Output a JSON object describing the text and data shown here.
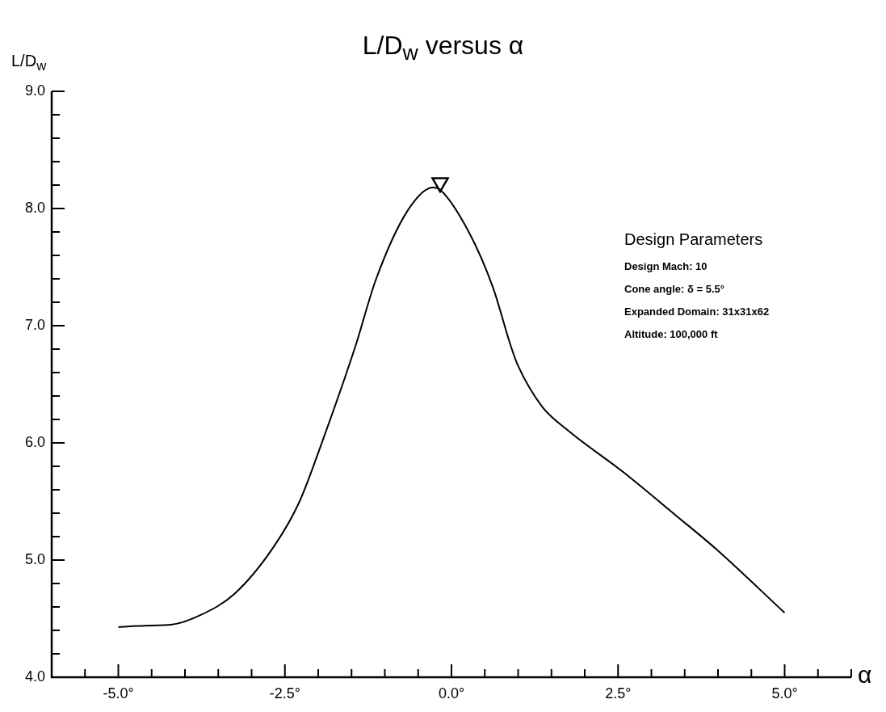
{
  "chart_data": {
    "type": "line",
    "title": "L/D$_{w}$ versus α",
    "xlabel": "α",
    "ylabel": "L/D$_{w}$",
    "xlim": [
      -6,
      6
    ],
    "xticks": [
      {
        "value": -6,
        "label": null
      },
      {
        "value": -5.5,
        "label": null
      },
      {
        "value": -5,
        "label": "-5.0°"
      },
      {
        "value": -4.5,
        "label": null
      },
      {
        "value": -4,
        "label": null
      },
      {
        "value": -3.5,
        "label": null
      },
      {
        "value": -3,
        "label": null
      },
      {
        "value": -2.5,
        "label": "-2.5°"
      },
      {
        "value": -2,
        "label": null
      },
      {
        "value": -1.5,
        "label": null
      },
      {
        "value": -1,
        "label": null
      },
      {
        "value": -0.5,
        "label": null
      },
      {
        "value": 0,
        "label": "0.0°"
      },
      {
        "value": 0.5,
        "label": null
      },
      {
        "value": 1,
        "label": null
      },
      {
        "value": 1.5,
        "label": null
      },
      {
        "value": 2,
        "label": null
      },
      {
        "value": 2.5,
        "label": "2.5°"
      },
      {
        "value": 3,
        "label": null
      },
      {
        "value": 3.5,
        "label": null
      },
      {
        "value": 4,
        "label": null
      },
      {
        "value": 4.5,
        "label": null
      },
      {
        "value": 5,
        "label": "5.0°"
      },
      {
        "value": 5.5,
        "label": null
      },
      {
        "value": 6,
        "label": null
      }
    ],
    "ylim": [
      4,
      9
    ],
    "yticks": [
      {
        "value": 4,
        "label": "4.0"
      },
      {
        "value": 4.2,
        "label": null
      },
      {
        "value": 4.4,
        "label": null
      },
      {
        "value": 4.6,
        "label": null
      },
      {
        "value": 4.8,
        "label": null
      },
      {
        "value": 5,
        "label": "5.0"
      },
      {
        "value": 5.2,
        "label": null
      },
      {
        "value": 5.4,
        "label": null
      },
      {
        "value": 5.6,
        "label": null
      },
      {
        "value": 5.8,
        "label": null
      },
      {
        "value": 6,
        "label": "6.0"
      },
      {
        "value": 6.2,
        "label": null
      },
      {
        "value": 6.4,
        "label": null
      },
      {
        "value": 6.6,
        "label": null
      },
      {
        "value": 6.8,
        "label": null
      },
      {
        "value": 7,
        "label": "7.0"
      },
      {
        "value": 7.2,
        "label": null
      },
      {
        "value": 7.4,
        "label": null
      },
      {
        "value": 7.6,
        "label": null
      },
      {
        "value": 7.8,
        "label": null
      },
      {
        "value": 8,
        "label": "8.0"
      },
      {
        "value": 8.2,
        "label": null
      },
      {
        "value": 8.4,
        "label": null
      },
      {
        "value": 8.6,
        "label": null
      },
      {
        "value": 8.8,
        "label": null
      },
      {
        "value": 9,
        "label": "9.0"
      }
    ],
    "series": [
      {
        "type": "line",
        "color": "#000000",
        "marker": "none",
        "line_style": "solid",
        "x": [
          -5.0,
          -4.6,
          -4.19,
          -3.77,
          -3.26,
          -2.66,
          -2.28,
          -1.94,
          -1.45,
          -1.13,
          -0.66,
          -0.28,
          -0.17,
          0.25,
          0.62,
          0.9,
          0.99,
          1.36,
          1.74,
          2.58,
          3.37,
          3.98,
          5.0
        ],
        "values": [
          4.43,
          4.44,
          4.45,
          4.53,
          4.71,
          5.12,
          5.5,
          6.01,
          6.81,
          7.4,
          7.98,
          8.18,
          8.16,
          7.81,
          7.33,
          6.81,
          6.67,
          6.31,
          6.11,
          5.75,
          5.38,
          5.09,
          4.55
        ]
      },
      {
        "type": "scatter",
        "color": "#000000",
        "marker": "triangle",
        "x": [
          -0.17
        ],
        "values": [
          8.22
        ]
      }
    ],
    "annotations": [
      "Design Parameters",
      "Design Mach:  10",
      "Cone angle: δ = 5.5°",
      "Expanded Domain:  31x31x62",
      "Altitude:  100,000 ft"
    ]
  }
}
